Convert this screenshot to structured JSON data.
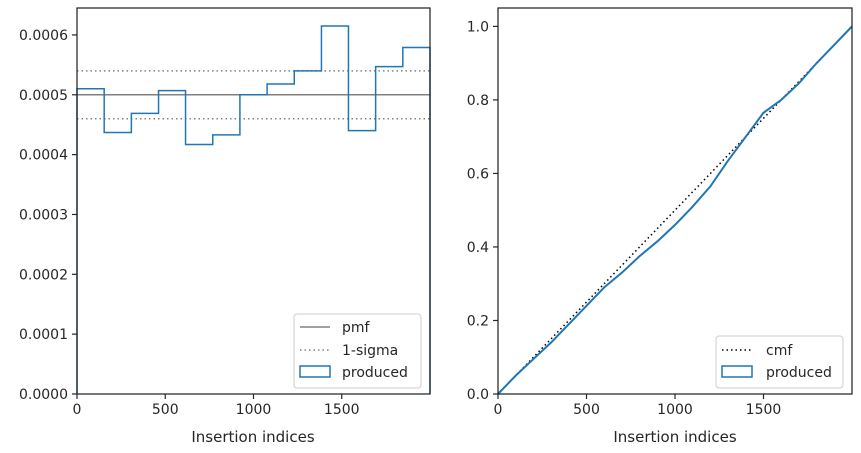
{
  "chart_data": [
    {
      "type": "histogram-step",
      "xlabel": "Insertion indices",
      "ylabel": "",
      "xlim": [
        0,
        2000
      ],
      "ylim": [
        0,
        0.000645
      ],
      "xticks": [
        0,
        500,
        1000,
        1500
      ],
      "xtick_labels": [
        "0",
        "500",
        "1000",
        "1500"
      ],
      "yticks": [
        0,
        0.0001,
        0.0002,
        0.0003,
        0.0004,
        0.0005,
        0.0006
      ],
      "ytick_labels": [
        "0.0000",
        "0.0001",
        "0.0002",
        "0.0003",
        "0.0004",
        "0.0005",
        "0.0006"
      ],
      "bin_edges": [
        0,
        154,
        308,
        462,
        615,
        769,
        923,
        1077,
        1231,
        1385,
        1538,
        1692,
        1846,
        2000
      ],
      "produced_values": [
        0.00051,
        0.000437,
        0.000469,
        0.000507,
        0.000417,
        0.000433,
        0.0005,
        0.000518,
        0.00054,
        0.000615,
        0.00044,
        0.000547,
        0.000579
      ],
      "pmf": 0.0005,
      "sigma_lower": 0.00046,
      "sigma_upper": 0.00054,
      "legend": {
        "position": "lower right",
        "entries": [
          {
            "label": "pmf",
            "style": "solid",
            "color": "#808080"
          },
          {
            "label": "1-sigma",
            "style": "dotted",
            "color": "#808080"
          },
          {
            "label": "produced",
            "style": "step",
            "color": "#1f77b4"
          }
        ]
      },
      "grid": false
    },
    {
      "type": "line",
      "xlabel": "Insertion indices",
      "ylabel": "",
      "xlim": [
        0,
        2000
      ],
      "ylim": [
        0,
        1.05
      ],
      "xticks": [
        0,
        500,
        1000,
        1500
      ],
      "xtick_labels": [
        "0",
        "500",
        "1000",
        "1500"
      ],
      "yticks": [
        0,
        0.2,
        0.4,
        0.6,
        0.8,
        1.0
      ],
      "ytick_labels": [
        "0.0",
        "0.2",
        "0.4",
        "0.6",
        "0.8",
        "1.0"
      ],
      "cmf": {
        "x": [
          0,
          2000
        ],
        "y": [
          0,
          1
        ]
      },
      "produced": {
        "x": [
          0,
          100,
          200,
          300,
          400,
          500,
          600,
          700,
          800,
          900,
          1000,
          1100,
          1200,
          1300,
          1400,
          1500,
          1600,
          1700,
          1800,
          1900,
          2000
        ],
        "y": [
          0,
          0.05,
          0.095,
          0.14,
          0.19,
          0.24,
          0.29,
          0.33,
          0.375,
          0.415,
          0.46,
          0.51,
          0.565,
          0.635,
          0.7,
          0.765,
          0.8,
          0.845,
          0.9,
          0.95,
          1.0
        ]
      },
      "legend": {
        "position": "lower right",
        "entries": [
          {
            "label": "cmf",
            "style": "dotted",
            "color": "#000000"
          },
          {
            "label": "produced",
            "style": "step",
            "color": "#1f77b4"
          }
        ]
      },
      "grid": false
    }
  ],
  "colors": {
    "produced": "#1f77b4",
    "reference": "#808080",
    "cmf": "#000000",
    "axes": "#262626"
  }
}
